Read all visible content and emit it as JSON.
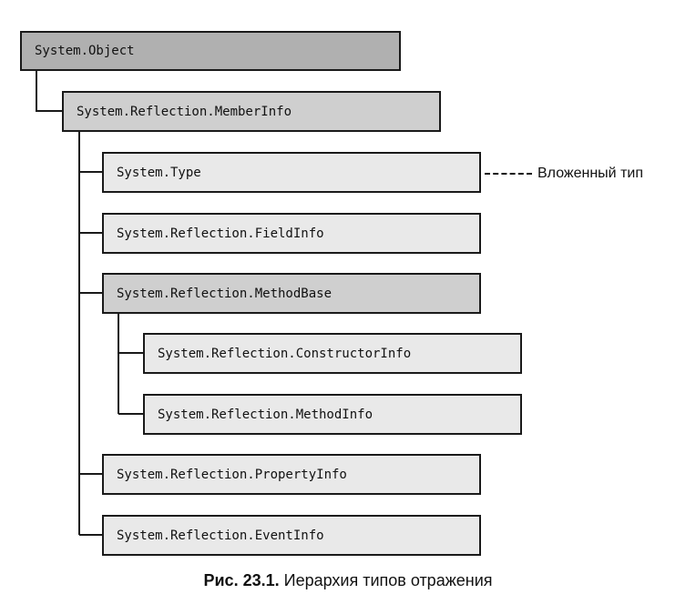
{
  "nodes": {
    "object": "System.Object",
    "member_info": "System.Reflection.MemberInfo",
    "type": "System.Type",
    "field_info": "System.Reflection.FieldInfo",
    "method_base": "System.Reflection.MethodBase",
    "constructor_info": "System.Reflection.ConstructorInfo",
    "method_info": "System.Reflection.MethodInfo",
    "property_info": "System.Reflection.PropertyInfo",
    "event_info": "System.Reflection.EventInfo"
  },
  "annotation": {
    "nested_type": "Вложенный тип"
  },
  "caption": {
    "label": "Рис. 23.1.",
    "text": "Иерархия типов отражения"
  },
  "colors": {
    "root_fill": "#b0b0b0",
    "mid_fill": "#cfcfcf",
    "leaf_fill": "#e9e9e9",
    "line": "#1a1a1a"
  }
}
